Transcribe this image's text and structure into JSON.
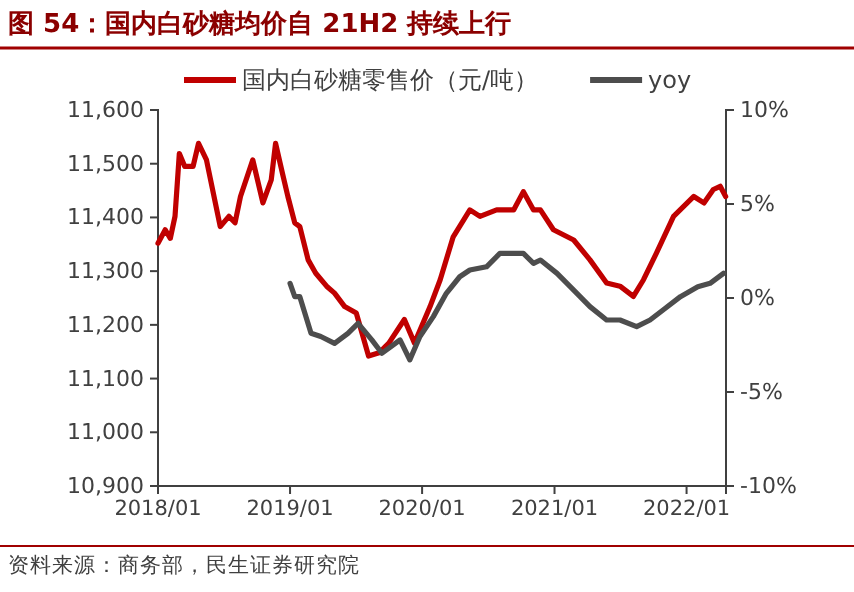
{
  "chart_data": {
    "type": "line",
    "title": "图 54：国内白砂糖均价自 21H2 持续上行",
    "annotations": [
      "资料来源：商务部，民生证券研究院"
    ],
    "legend": "top",
    "grid": false,
    "xlim": [
      "2018-01-01",
      "2022-04-20"
    ],
    "xticks": [
      {
        "value": "2018-01-01",
        "label": "2018/01"
      },
      {
        "value": "2019-01-01",
        "label": "2019/01"
      },
      {
        "value": "2020-01-01",
        "label": "2020/01"
      },
      {
        "value": "2021-01-01",
        "label": "2021/01"
      },
      {
        "value": "2022-01-01",
        "label": "2022/01"
      }
    ],
    "ylim": [
      10900,
      11600
    ],
    "yticks": [
      {
        "value": 10900,
        "label": "10,900"
      },
      {
        "value": 11000,
        "label": "11,000"
      },
      {
        "value": 11100,
        "label": "11,100"
      },
      {
        "value": 11200,
        "label": "11,200"
      },
      {
        "value": 11300,
        "label": "11,300"
      },
      {
        "value": 11400,
        "label": "11,400"
      },
      {
        "value": 11500,
        "label": "11,500"
      },
      {
        "value": 11600,
        "label": "11,600"
      }
    ],
    "y2lim": [
      -10,
      10
    ],
    "y2ticks": [
      {
        "value": -10,
        "label": "-10%"
      },
      {
        "value": -5,
        "label": "-5%"
      },
      {
        "value": 0,
        "label": "0%"
      },
      {
        "value": 5,
        "label": "5%"
      },
      {
        "value": 10,
        "label": "10%"
      }
    ],
    "series": [
      {
        "name": "国内白砂糖零售价（元/吨）",
        "color": "#c00000",
        "x": [
          "2018-01-01",
          "2018-01-21",
          "2018-02-04",
          "2018-02-17",
          "2018-03-01",
          "2018-03-16",
          "2018-04-08",
          "2018-04-23",
          "2018-05-15",
          "2018-06-22",
          "2018-07-16",
          "2018-08-02",
          "2018-08-17",
          "2018-09-20",
          "2018-10-18",
          "2018-11-10",
          "2018-11-22",
          "2018-12-11",
          "2018-12-26",
          "2019-01-14",
          "2019-01-28",
          "2019-02-20",
          "2019-03-13",
          "2019-04-12",
          "2019-05-04",
          "2019-06-01",
          "2019-07-03",
          "2019-08-06",
          "2019-09-04",
          "2019-10-01",
          "2019-11-13",
          "2019-12-11",
          "2020-01-23",
          "2020-02-20",
          "2020-03-27",
          "2020-05-12",
          "2020-06-09",
          "2020-07-25",
          "2020-09-10",
          "2020-10-07",
          "2020-11-04",
          "2020-11-23",
          "2020-12-29",
          "2021-02-23",
          "2021-04-09",
          "2021-05-25",
          "2021-07-01",
          "2021-08-07",
          "2021-09-04",
          "2021-10-10",
          "2021-11-26",
          "2022-01-21",
          "2022-02-18",
          "2022-03-16",
          "2022-04-04",
          "2022-04-19"
        ],
        "values": [
          11352,
          11377,
          11361,
          11402,
          11519,
          11495,
          11495,
          11538,
          11507,
          11383,
          11402,
          11390,
          11439,
          11507,
          11427,
          11470,
          11538,
          11482,
          11439,
          11390,
          11383,
          11321,
          11296,
          11272,
          11259,
          11234,
          11222,
          11142,
          11148,
          11166,
          11210,
          11166,
          11234,
          11284,
          11364,
          11414,
          11402,
          11414,
          11414,
          11448,
          11414,
          11414,
          11377,
          11358,
          11321,
          11278,
          11272,
          11253,
          11284,
          11334,
          11402,
          11439,
          11427,
          11452,
          11458,
          11439
        ]
      },
      {
        "name": "yoy",
        "color": "#4d4d4d",
        "axis": "y2",
        "x": [
          "2019-01-01",
          "2019-01-14",
          "2019-01-28",
          "2019-02-28",
          "2019-03-27",
          "2019-05-04",
          "2019-06-10",
          "2019-07-08",
          "2019-08-15",
          "2019-09-12",
          "2019-10-19",
          "2019-11-01",
          "2019-11-28",
          "2019-12-26",
          "2020-02-01",
          "2020-03-08",
          "2020-04-14",
          "2020-05-12",
          "2020-06-27",
          "2020-08-03",
          "2020-09-10",
          "2020-10-07",
          "2020-11-04",
          "2020-11-23",
          "2021-01-08",
          "2021-02-23",
          "2021-04-09",
          "2021-05-25",
          "2021-07-01",
          "2021-08-16",
          "2021-09-22",
          "2021-10-28",
          "2021-12-15",
          "2022-02-01",
          "2022-03-07",
          "2022-04-13"
        ],
        "values": [
          0.78,
          0.07,
          0.07,
          -1.88,
          -2.05,
          -2.41,
          -1.88,
          -1.35,
          -2.23,
          -2.94,
          -2.41,
          -2.23,
          -3.29,
          -2.05,
          -0.99,
          0.25,
          1.13,
          1.49,
          1.66,
          2.37,
          2.37,
          2.37,
          1.84,
          2.02,
          1.31,
          0.42,
          -0.46,
          -1.17,
          -1.17,
          -1.52,
          -1.17,
          -0.64,
          0.07,
          0.6,
          0.78,
          1.31
        ]
      }
    ]
  }
}
